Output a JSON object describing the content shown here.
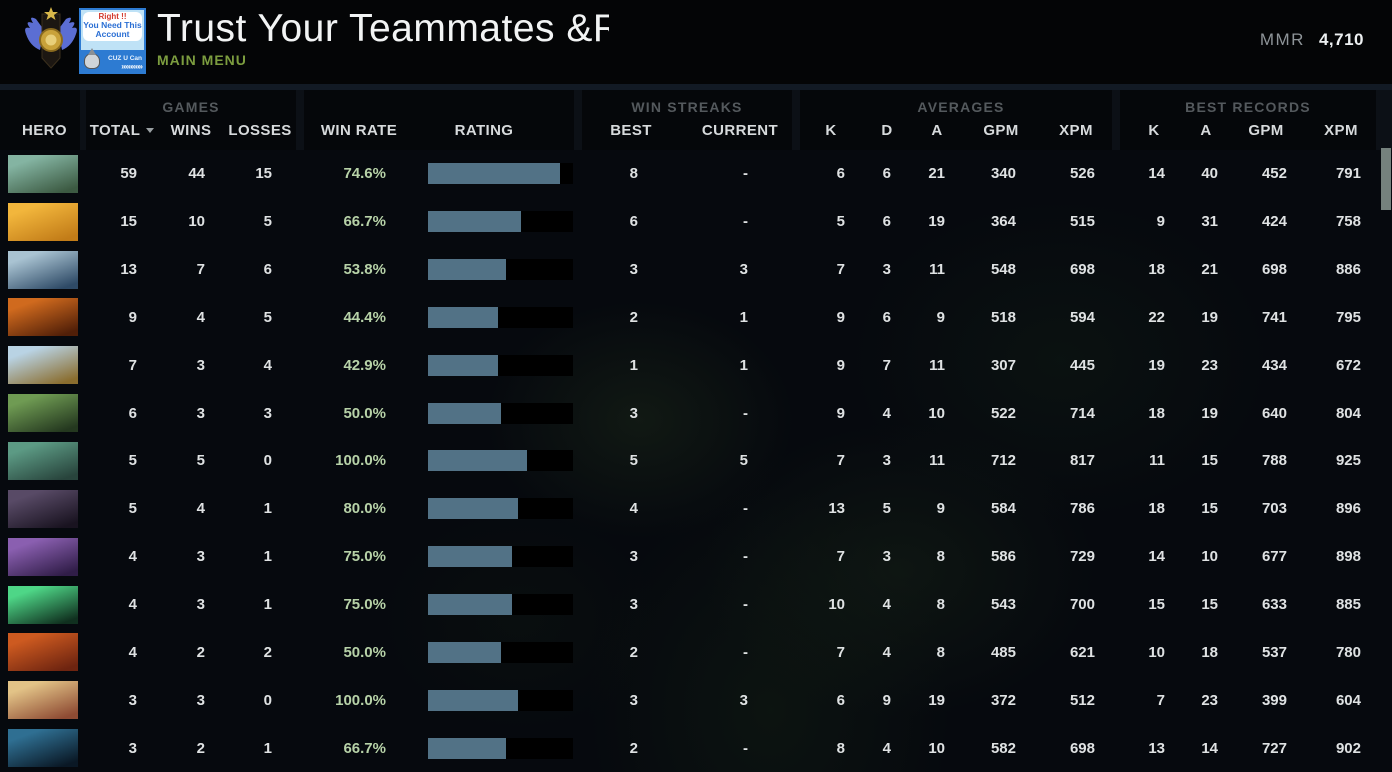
{
  "header": {
    "title": "Trust Your Teammates &Rank",
    "nav_label": "MAIN MENU",
    "mmr_label": "MMR",
    "mmr_value": "4,710",
    "avatar": {
      "line1": "Right !!",
      "line2": "You Need This",
      "line3": "Account",
      "footer": "CUZ U Can",
      "arrows": "»»»»»»"
    }
  },
  "table": {
    "groups": {
      "games": "GAMES",
      "win_streaks": "WIN STREAKS",
      "averages": "AVERAGES",
      "best_records": "BEST RECORDS"
    },
    "columns": {
      "hero": "HERO",
      "total": "TOTAL",
      "wins": "WINS",
      "losses": "LOSSES",
      "win_rate": "WIN RATE",
      "rating": "RATING",
      "best": "BEST",
      "current": "CURRENT",
      "k": "K",
      "d": "D",
      "a": "A",
      "gpm": "GPM",
      "xpm": "XPM"
    },
    "rows": [
      {
        "portrait": [
          "#84b4a2",
          "#3c5a42"
        ],
        "total": "59",
        "wins": "44",
        "losses": "15",
        "win_rate": "74.6%",
        "rating_pct": 91,
        "best": "8",
        "current": "-",
        "k": "6",
        "d": "6",
        "a": "21",
        "gpm": "340",
        "xpm": "526",
        "rk": "14",
        "ra": "40",
        "rgpm": "452",
        "rxpm": "791"
      },
      {
        "portrait": [
          "#f2b63c",
          "#c27c18"
        ],
        "total": "15",
        "wins": "10",
        "losses": "5",
        "win_rate": "66.7%",
        "rating_pct": 64,
        "best": "6",
        "current": "-",
        "k": "5",
        "d": "6",
        "a": "19",
        "gpm": "364",
        "xpm": "515",
        "rk": "9",
        "ra": "31",
        "rgpm": "424",
        "rxpm": "758"
      },
      {
        "portrait": [
          "#a9c3d2",
          "#2e4a66"
        ],
        "total": "13",
        "wins": "7",
        "losses": "6",
        "win_rate": "53.8%",
        "rating_pct": 54,
        "best": "3",
        "current": "3",
        "k": "7",
        "d": "3",
        "a": "11",
        "gpm": "548",
        "xpm": "698",
        "rk": "18",
        "ra": "21",
        "rgpm": "698",
        "rxpm": "886"
      },
      {
        "portrait": [
          "#d06a1e",
          "#511f08"
        ],
        "total": "9",
        "wins": "4",
        "losses": "5",
        "win_rate": "44.4%",
        "rating_pct": 48,
        "best": "2",
        "current": "1",
        "k": "9",
        "d": "6",
        "a": "9",
        "gpm": "518",
        "xpm": "594",
        "rk": "22",
        "ra": "19",
        "rgpm": "741",
        "rxpm": "795"
      },
      {
        "portrait": [
          "#b9d3e4",
          "#8a6d2e"
        ],
        "total": "7",
        "wins": "3",
        "losses": "4",
        "win_rate": "42.9%",
        "rating_pct": 48,
        "best": "1",
        "current": "1",
        "k": "9",
        "d": "7",
        "a": "11",
        "gpm": "307",
        "xpm": "445",
        "rk": "19",
        "ra": "23",
        "rgpm": "434",
        "rxpm": "672"
      },
      {
        "portrait": [
          "#6f9b53",
          "#24381f"
        ],
        "total": "6",
        "wins": "3",
        "losses": "3",
        "win_rate": "50.0%",
        "rating_pct": 50,
        "best": "3",
        "current": "-",
        "k": "9",
        "d": "4",
        "a": "10",
        "gpm": "522",
        "xpm": "714",
        "rk": "18",
        "ra": "19",
        "rgpm": "640",
        "rxpm": "804"
      },
      {
        "portrait": [
          "#5c9a84",
          "#28443c"
        ],
        "total": "5",
        "wins": "5",
        "losses": "0",
        "win_rate": "100.0%",
        "rating_pct": 68,
        "best": "5",
        "current": "5",
        "k": "7",
        "d": "3",
        "a": "11",
        "gpm": "712",
        "xpm": "817",
        "rk": "11",
        "ra": "15",
        "rgpm": "788",
        "rxpm": "925"
      },
      {
        "portrait": [
          "#584a66",
          "#191320"
        ],
        "total": "5",
        "wins": "4",
        "losses": "1",
        "win_rate": "80.0%",
        "rating_pct": 62,
        "best": "4",
        "current": "-",
        "k": "13",
        "d": "5",
        "a": "9",
        "gpm": "584",
        "xpm": "786",
        "rk": "18",
        "ra": "15",
        "rgpm": "703",
        "rxpm": "896"
      },
      {
        "portrait": [
          "#8a5fb0",
          "#301d48"
        ],
        "total": "4",
        "wins": "3",
        "losses": "1",
        "win_rate": "75.0%",
        "rating_pct": 58,
        "best": "3",
        "current": "-",
        "k": "7",
        "d": "3",
        "a": "8",
        "gpm": "586",
        "xpm": "729",
        "rk": "14",
        "ra": "10",
        "rgpm": "677",
        "rxpm": "898"
      },
      {
        "portrait": [
          "#4ed687",
          "#10301f"
        ],
        "total": "4",
        "wins": "3",
        "losses": "1",
        "win_rate": "75.0%",
        "rating_pct": 58,
        "best": "3",
        "current": "-",
        "k": "10",
        "d": "4",
        "a": "8",
        "gpm": "543",
        "xpm": "700",
        "rk": "15",
        "ra": "15",
        "rgpm": "633",
        "rxpm": "885"
      },
      {
        "portrait": [
          "#cd5a20",
          "#6e2410"
        ],
        "total": "4",
        "wins": "2",
        "losses": "2",
        "win_rate": "50.0%",
        "rating_pct": 50,
        "best": "2",
        "current": "-",
        "k": "7",
        "d": "4",
        "a": "8",
        "gpm": "485",
        "xpm": "621",
        "rk": "10",
        "ra": "18",
        "rgpm": "537",
        "rxpm": "780"
      },
      {
        "portrait": [
          "#e2c387",
          "#8e4b33"
        ],
        "total": "3",
        "wins": "3",
        "losses": "0",
        "win_rate": "100.0%",
        "rating_pct": 62,
        "best": "3",
        "current": "3",
        "k": "6",
        "d": "9",
        "a": "19",
        "gpm": "372",
        "xpm": "512",
        "rk": "7",
        "ra": "23",
        "rgpm": "399",
        "rxpm": "604"
      },
      {
        "portrait": [
          "#2f6f92",
          "#0a1825"
        ],
        "total": "3",
        "wins": "2",
        "losses": "1",
        "win_rate": "66.7%",
        "rating_pct": 54,
        "best": "2",
        "current": "-",
        "k": "8",
        "d": "4",
        "a": "10",
        "gpm": "582",
        "xpm": "698",
        "rk": "13",
        "ra": "14",
        "rgpm": "727",
        "rxpm": "902"
      }
    ]
  },
  "colors": {
    "accent_green": "#7c9d3f",
    "win_rate_green": "#b7d2a8",
    "bar_fill": "#527286",
    "bar_bg": "#000000",
    "header_text": "#d7dadc",
    "group_text": "#54595d",
    "number_text": "#dfe2e3",
    "scrollbar": "#75817d"
  }
}
